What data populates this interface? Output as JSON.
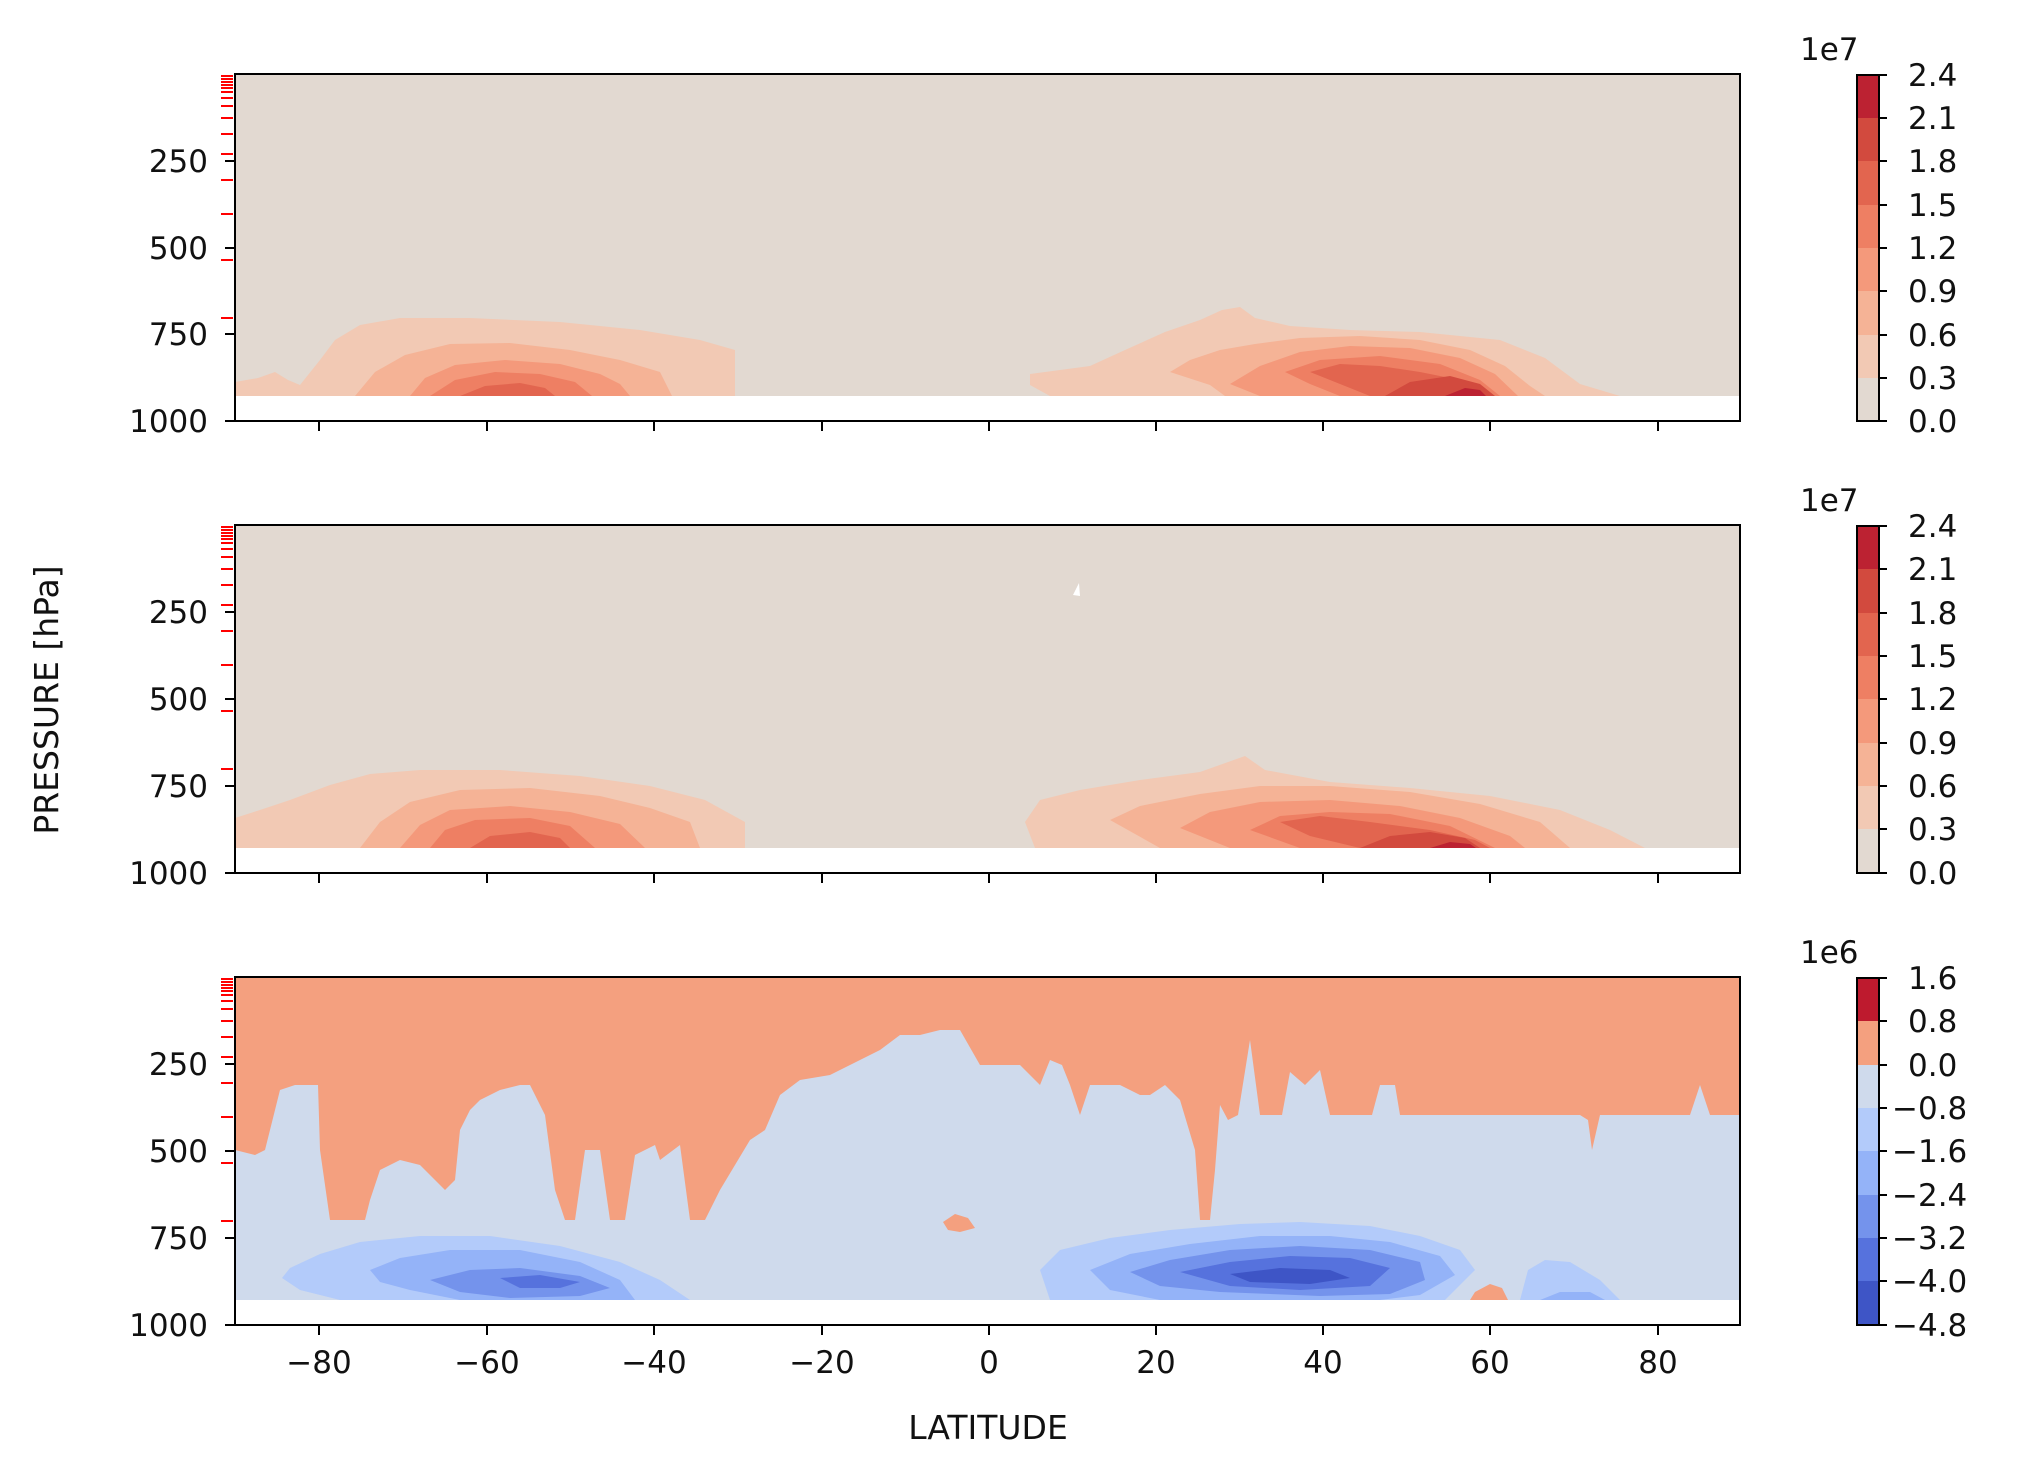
{
  "chart_data": [
    {
      "type": "contourf",
      "ylabel": "PRESSURE [hPa]",
      "xlim": [
        -90,
        90
      ],
      "ylim": [
        1000,
        0
      ],
      "yticks": [
        "250",
        "500",
        "750",
        "1000"
      ],
      "xticks": [
        "",
        "",
        "",
        "",
        "",
        "",
        "",
        ""
      ],
      "levels_display_scale": "1e7",
      "levels": [
        0.0,
        0.3,
        0.6,
        0.9,
        1.2,
        1.5,
        1.8,
        2.1,
        2.4
      ],
      "colorbar_ticks": [
        "2.4",
        "2.1",
        "1.8",
        "1.5",
        "1.2",
        "0.9",
        "0.6",
        "0.3",
        "0.0"
      ],
      "background_level": 0.0,
      "maxima": [
        {
          "lat": -56,
          "pressure": 920,
          "value": 1.5
        },
        {
          "lat": 58,
          "pressure": 920,
          "value": 2.1
        }
      ]
    },
    {
      "type": "contourf",
      "ylabel": "PRESSURE [hPa]",
      "xlim": [
        -90,
        90
      ],
      "ylim": [
        1000,
        0
      ],
      "yticks": [
        "250",
        "500",
        "750",
        "1000"
      ],
      "xticks": [
        "",
        "",
        "",
        "",
        "",
        "",
        "",
        ""
      ],
      "levels_display_scale": "1e7",
      "levels": [
        0.0,
        0.3,
        0.6,
        0.9,
        1.2,
        1.5,
        1.8,
        2.1,
        2.4
      ],
      "colorbar_ticks": [
        "2.4",
        "2.1",
        "1.8",
        "1.5",
        "1.2",
        "0.9",
        "0.6",
        "0.3",
        "0.0"
      ],
      "background_level": 0.0,
      "maxima": [
        {
          "lat": -56,
          "pressure": 920,
          "value": 1.5
        },
        {
          "lat": 57,
          "pressure": 920,
          "value": 2.1
        }
      ]
    },
    {
      "type": "contourf",
      "xlabel": "LATITUDE",
      "ylabel": "PRESSURE [hPa]",
      "xlim": [
        -90,
        90
      ],
      "ylim": [
        1000,
        0
      ],
      "yticks": [
        "250",
        "500",
        "750",
        "1000"
      ],
      "xticks": [
        "−80",
        "−60",
        "−40",
        "−20",
        "0",
        "20",
        "40",
        "60",
        "80"
      ],
      "levels_display_scale": "1e6",
      "levels": [
        -4.8,
        -4.0,
        -3.2,
        -2.4,
        -1.6,
        -0.8,
        0.0,
        0.8,
        1.6
      ],
      "colorbar_ticks": [
        "1.6",
        "0.8",
        "0.0",
        "−0.8",
        "−1.6",
        "−2.4",
        "−3.2",
        "−4.0",
        "−4.8"
      ],
      "minima": [
        {
          "lat": -50,
          "pressure": 850,
          "value": -2.4
        },
        {
          "lat": 32,
          "pressure": 850,
          "value": -4.0
        }
      ]
    }
  ],
  "colors": {
    "warm_levels": [
      "#e2d9d1",
      "#f2c9b4",
      "#f5b396",
      "#f4997b",
      "#ee7f63",
      "#e2654f",
      "#d24a3e",
      "#bc2232"
    ],
    "diverging_levels": [
      "#3e55c6",
      "#5672dd",
      "#7493ec",
      "#94b3f8",
      "#b3cbfa",
      "#cfdaec",
      "#f4a07f",
      "#be1a2e"
    ],
    "minor_tick": "#ff0000"
  }
}
